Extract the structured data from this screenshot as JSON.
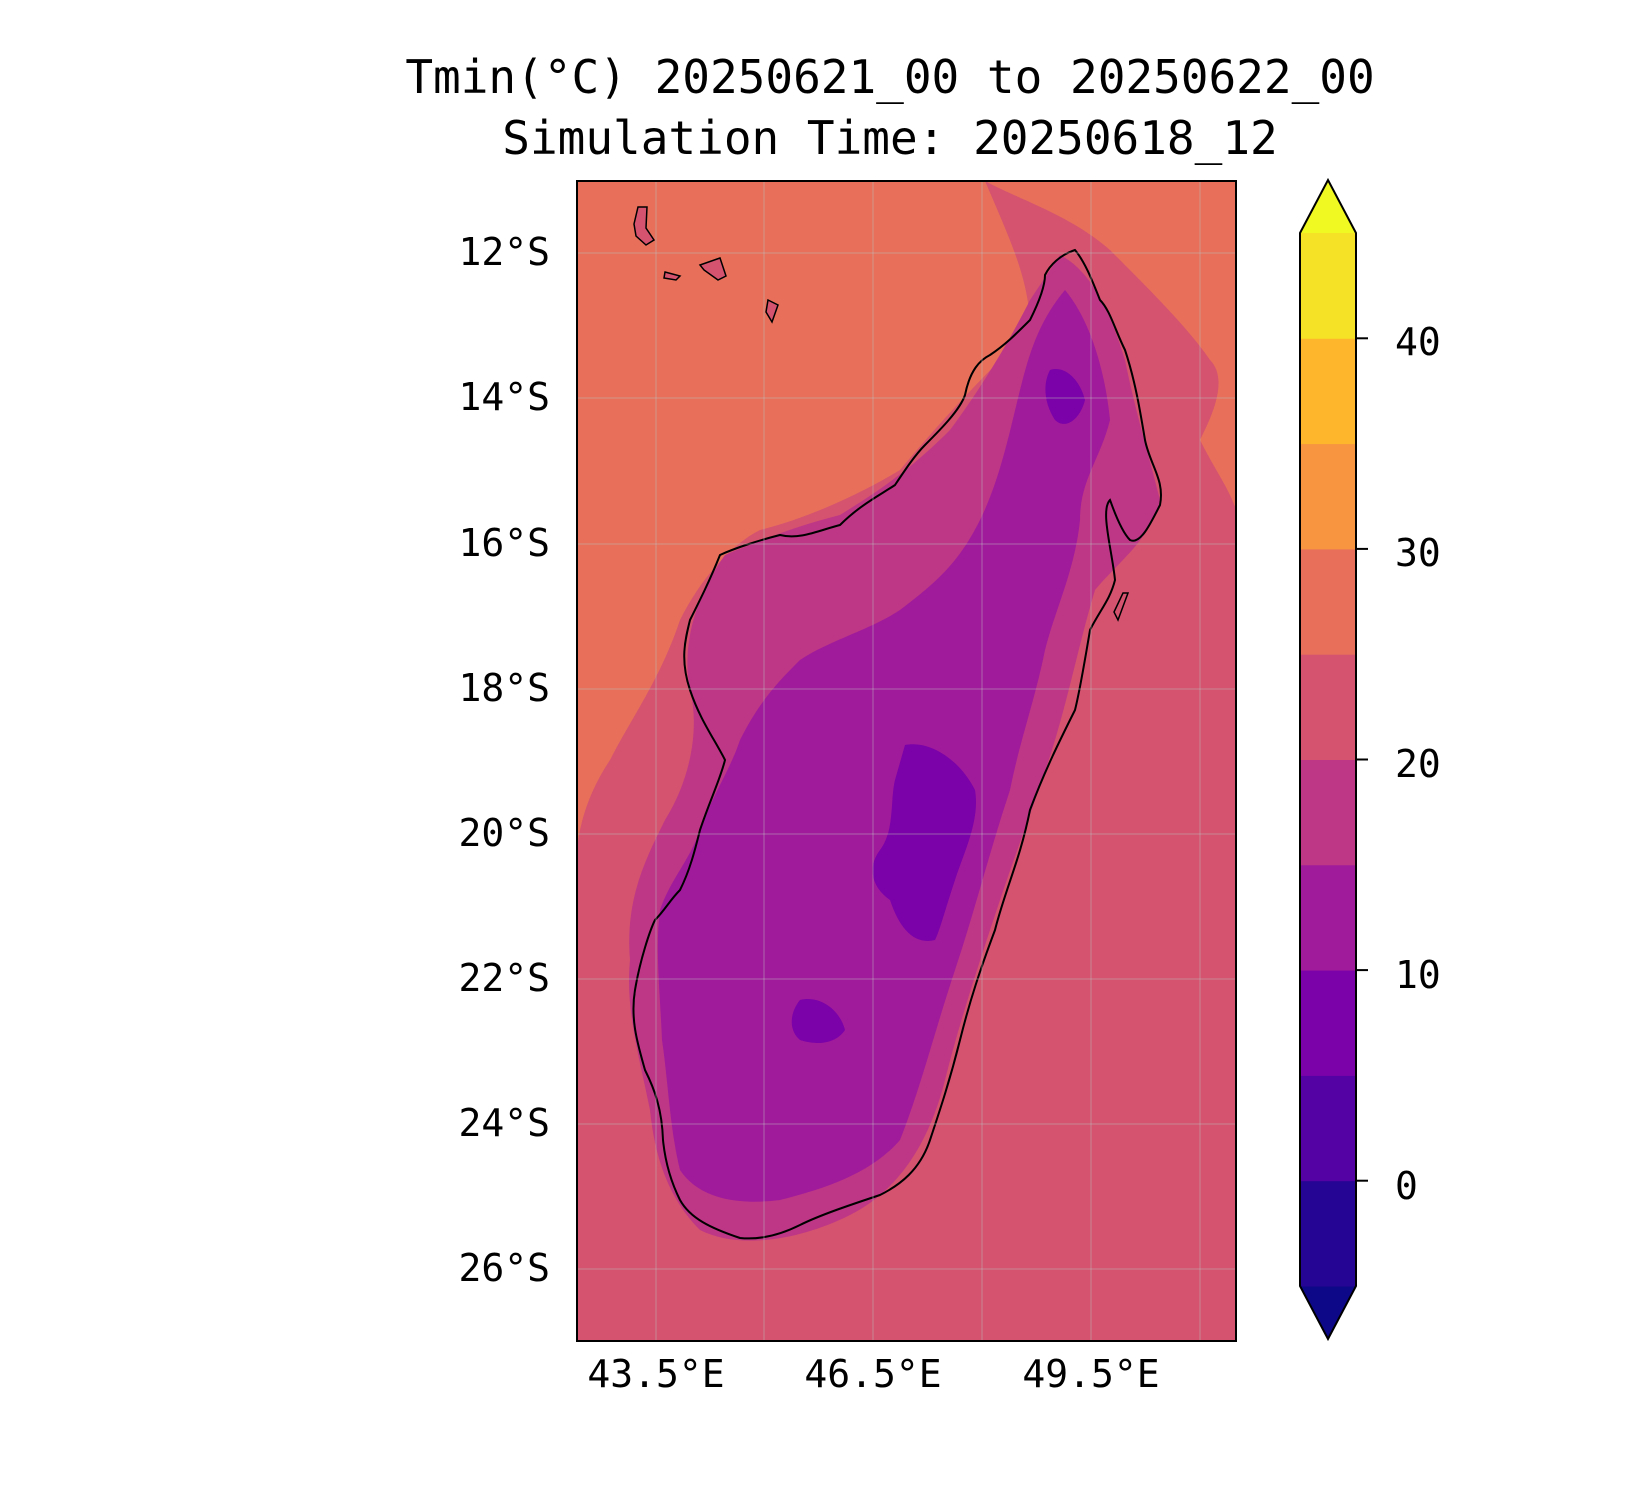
{
  "title": {
    "line1": "Tmin(°C) 20250621_00 to 20250622_00",
    "line2": "Simulation Time: 20250618_12"
  },
  "map": {
    "region": "Madagascar",
    "lat_ticks": [
      "12°S",
      "14°S",
      "16°S",
      "18°S",
      "20°S",
      "22°S",
      "24°S",
      "26°S"
    ],
    "lon_ticks": [
      "43.5°E",
      "46.5°E",
      "49.5°E"
    ],
    "lon_range": [
      42.4,
      51.5
    ],
    "lat_range": [
      -27.0,
      -11.0
    ],
    "gridlines": true
  },
  "colorbar": {
    "colormap": "plasma",
    "extend": "both",
    "ticks": [
      "0",
      "10",
      "20",
      "30",
      "40"
    ],
    "levels": [
      -5,
      0,
      5,
      10,
      15,
      20,
      25,
      30,
      35,
      40,
      45
    ],
    "colors": [
      "#0d0887",
      "#250593",
      "#5402a3",
      "#7b02a8",
      "#a01a9c",
      "#bd3786",
      "#d5536f",
      "#e8705a",
      "#f79540",
      "#feb72d",
      "#f5e126",
      "#f0f921"
    ]
  },
  "field": {
    "ocean_west_north": "#e8705a",
    "ocean_south_east": "#d5536f",
    "coast_band": "#bd3786",
    "interior": "#a01a9c",
    "highland_cold": "#7b02a8"
  }
}
